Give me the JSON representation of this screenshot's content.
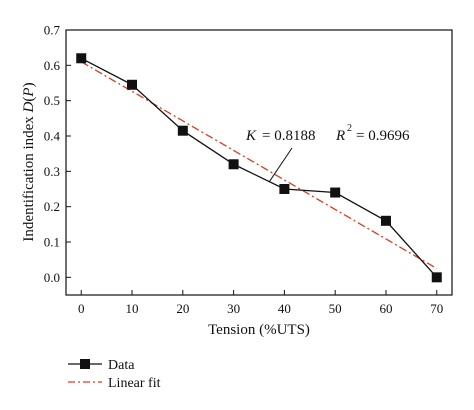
{
  "chart_data": {
    "type": "line",
    "title": "",
    "xlabel": "Tension (%UTS)",
    "ylabel_prefix": "Indentification index ",
    "ylabel_var": "D",
    "ylabel_arg": "P",
    "xlim": [
      -3,
      73
    ],
    "ylim": [
      -0.05,
      0.7
    ],
    "xticks": [
      0,
      10,
      20,
      30,
      40,
      50,
      60,
      70
    ],
    "yticks": [
      0.0,
      0.1,
      0.2,
      0.3,
      0.4,
      0.5,
      0.6,
      0.7
    ],
    "ytick_labels": [
      "0.0",
      "0.1",
      "0.2",
      "0.3",
      "0.4",
      "0.5",
      "0.6",
      "0.7"
    ],
    "series": [
      {
        "name": "Data",
        "kind": "line-marker",
        "color": "#111111",
        "x": [
          0,
          10,
          20,
          30,
          40,
          50,
          60,
          70
        ],
        "y": [
          0.62,
          0.545,
          0.415,
          0.32,
          0.25,
          0.24,
          0.16,
          0.0
        ]
      },
      {
        "name": "Linear fit",
        "kind": "dash-dot",
        "color": "#e03a1e",
        "x": [
          0,
          70
        ],
        "y": [
          0.61,
          0.025
        ]
      }
    ],
    "annotation": {
      "k_label": "K",
      "k_value": "= 0.8188",
      "r2_label": "R",
      "r2_exp": "2",
      "r2_value": "= 0.9696",
      "pointer_to": [
        37,
        0.27
      ]
    },
    "legend": {
      "placement": "bottom-left, below plot"
    }
  }
}
